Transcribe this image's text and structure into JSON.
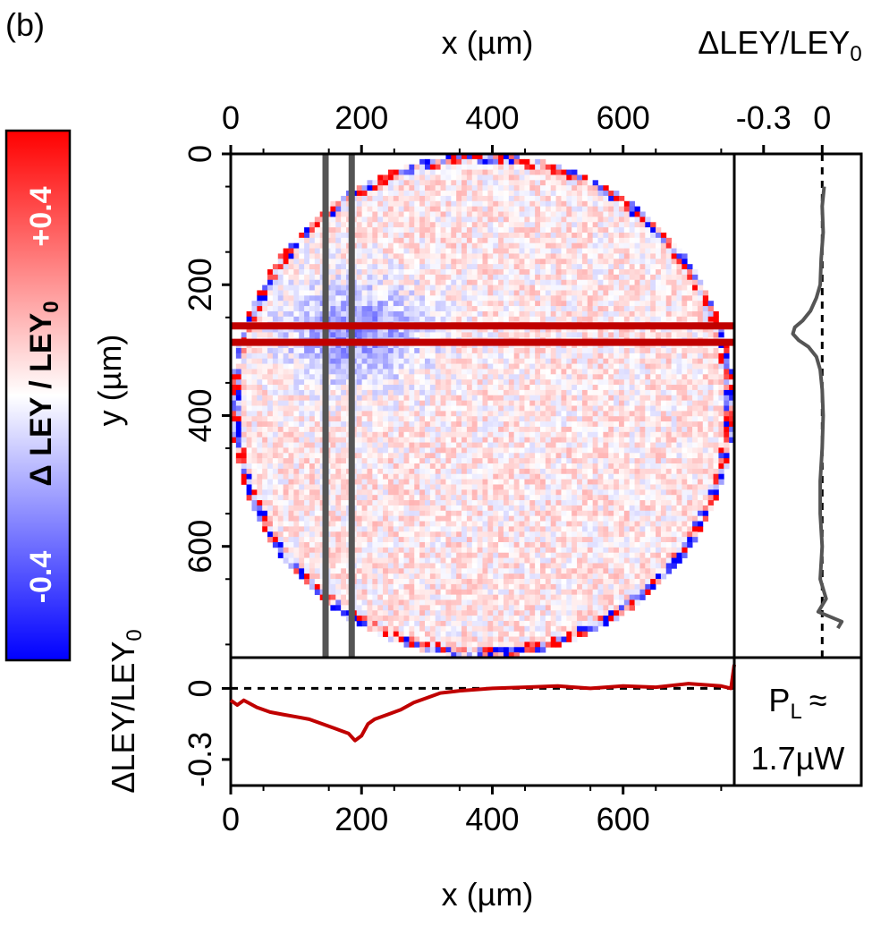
{
  "panel_label": "(b)",
  "colors": {
    "neg": "#0000ff",
    "pos": "#ff0000",
    "neutral": "#ffffff",
    "cut_red": "#c00000",
    "cut_gray": "#555555"
  },
  "colorbar": {
    "label_main": "Δ LEY / LEY",
    "label_sub": "0",
    "max_label": "+0.4",
    "min_label": "-0.4",
    "range": [
      -0.4,
      0.4
    ]
  },
  "chart_data": [
    {
      "type": "heatmap",
      "xlabel": "x (µm)",
      "ylabel": "y (µm)",
      "xlim": [
        0,
        770
      ],
      "ylim": [
        0,
        770
      ],
      "xticks": [
        "0",
        "200",
        "400",
        "600"
      ],
      "yticks": [
        "0",
        "200",
        "400",
        "600"
      ],
      "xtick_values": [
        0,
        200,
        400,
        600
      ],
      "ytick_values": [
        0,
        200,
        400,
        600
      ],
      "colormap": "blue-white-red",
      "value_range": [
        -0.4,
        0.4
      ],
      "aperture": {
        "shape": "circle",
        "center_x": 385,
        "center_y": 385,
        "radius": 385
      },
      "depletion_region": {
        "center_x": 190,
        "center_y": 275,
        "peak_value": -0.2
      },
      "horizontal_cuts_y": [
        263,
        288
      ],
      "vertical_cuts_x": [
        145,
        185
      ]
    },
    {
      "type": "line",
      "xlabel": "ΔLEY/LEY",
      "xlabel_sub": "0",
      "xticks": [
        "-0.3",
        "0"
      ],
      "xtick_values": [
        -0.3,
        0
      ],
      "xlim": [
        -0.45,
        0.2
      ],
      "series": [
        {
          "color": "#555555",
          "y": [
            50,
            80,
            120,
            160,
            200,
            220,
            240,
            255,
            265,
            275,
            285,
            295,
            310,
            330,
            360,
            400,
            450,
            500,
            550,
            600,
            650,
            680,
            700,
            715,
            725
          ],
          "x": [
            0.01,
            0.0,
            0.005,
            -0.005,
            -0.01,
            -0.03,
            -0.06,
            -0.1,
            -0.14,
            -0.15,
            -0.12,
            -0.07,
            -0.03,
            -0.01,
            0.0,
            0.005,
            0.0,
            -0.01,
            -0.01,
            0.0,
            -0.01,
            0.02,
            -0.02,
            0.1,
            0.08
          ]
        }
      ]
    },
    {
      "type": "line",
      "xlabel": "x (µm)",
      "ylabel": "ΔLEY/LEY",
      "ylabel_sub": "0",
      "xticks": [
        "0",
        "200",
        "400",
        "600"
      ],
      "xtick_values": [
        0,
        200,
        400,
        600
      ],
      "xlim": [
        0,
        770
      ],
      "yticks": [
        "0",
        "-0.3"
      ],
      "ytick_values": [
        0,
        -0.3
      ],
      "ylim": [
        -0.41,
        0.13
      ],
      "series": [
        {
          "color": "#c00000",
          "x": [
            0,
            10,
            20,
            40,
            60,
            80,
            100,
            120,
            140,
            160,
            180,
            190,
            200,
            210,
            220,
            240,
            260,
            280,
            300,
            320,
            350,
            400,
            450,
            500,
            550,
            600,
            650,
            700,
            750,
            765,
            770
          ],
          "y": [
            -0.05,
            -0.07,
            -0.05,
            -0.08,
            -0.1,
            -0.11,
            -0.12,
            -0.13,
            -0.15,
            -0.17,
            -0.19,
            -0.22,
            -0.2,
            -0.15,
            -0.13,
            -0.11,
            -0.09,
            -0.06,
            -0.04,
            -0.02,
            -0.01,
            0.0,
            0.005,
            0.01,
            0.0,
            0.01,
            0.005,
            0.02,
            0.01,
            0.0,
            0.1
          ]
        }
      ]
    }
  ],
  "laser_power": {
    "symbol": "P",
    "sub": "L",
    "approx": "≈",
    "value": "1.7µW"
  }
}
